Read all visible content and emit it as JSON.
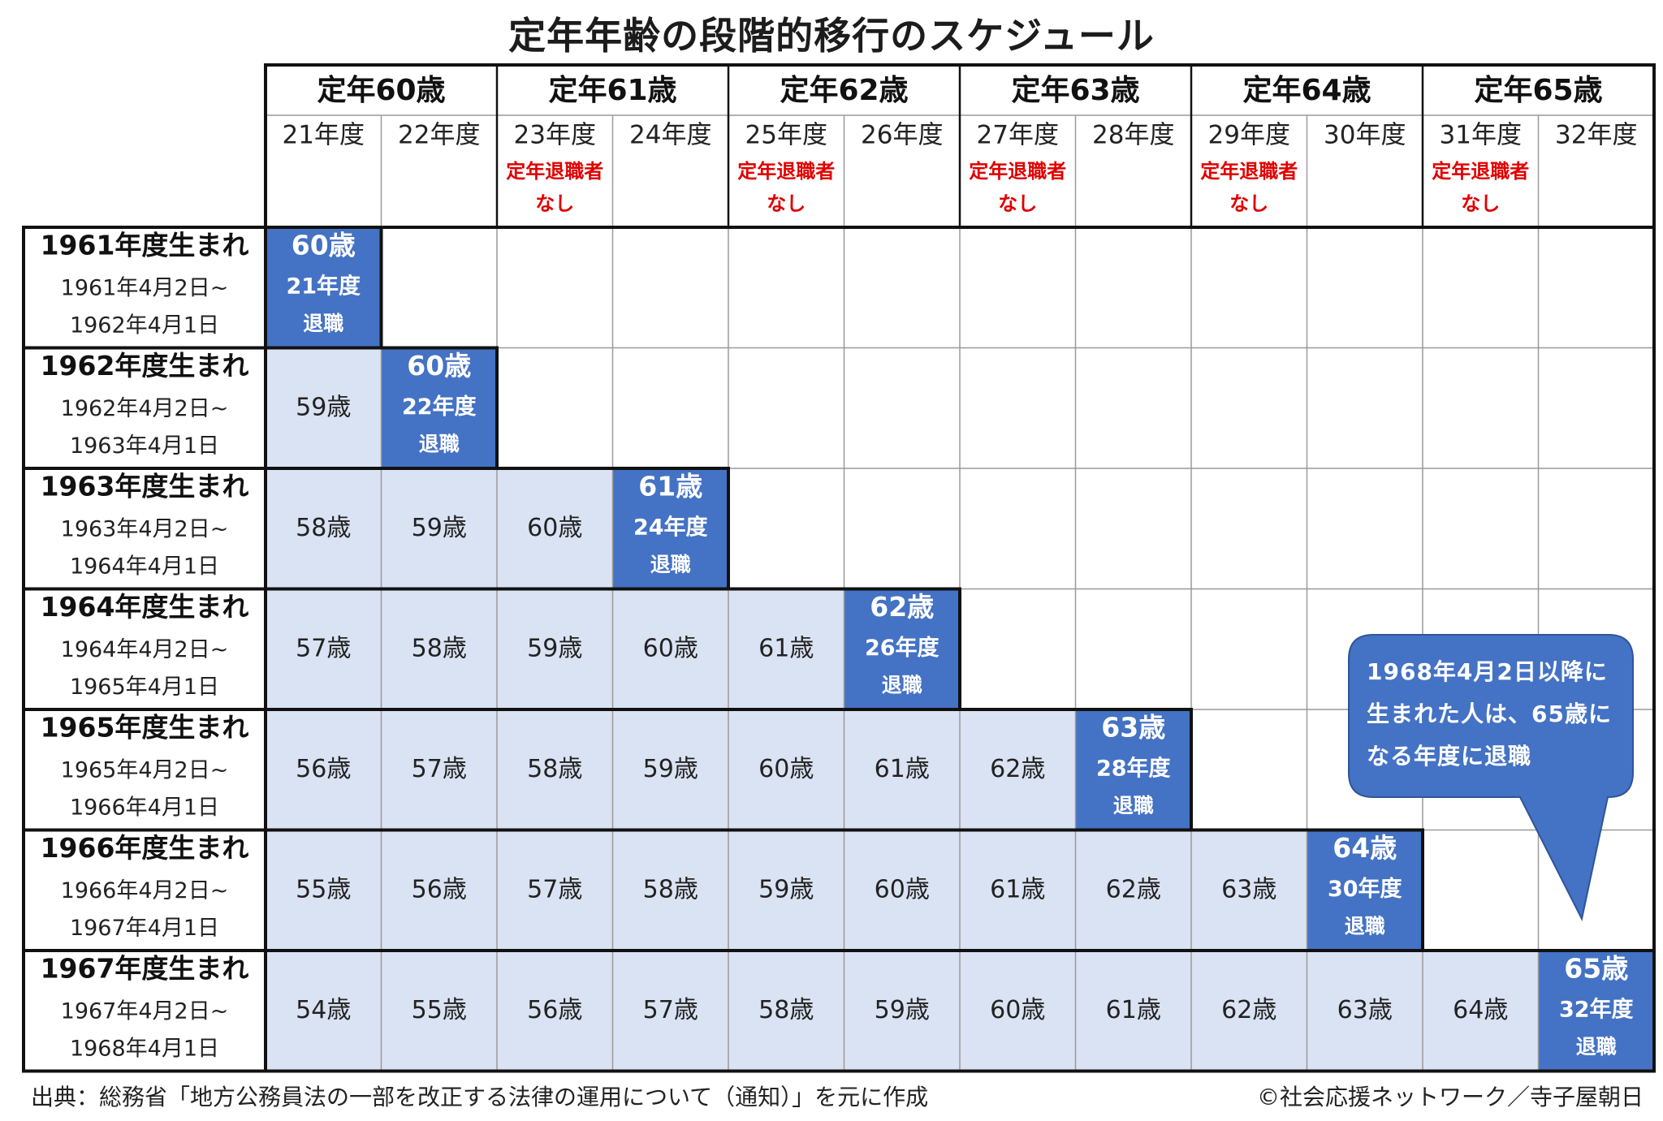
{
  "title": "定年年齢の段階的移行のスケジュール",
  "source": "出典：総務省「地方公務員法の一部を改正する法律の運用について（通知）」を元に作成",
  "credit": "©社会応援ネットワーク／寺子屋朝日",
  "callout": "1968年4月2日以降に生まれた人は、65歳になる年度に退職",
  "colors": {
    "retire_fill": "#4472c4",
    "age_fill": "#dae3f3",
    "red_note": "#e00000",
    "border": "#111111",
    "grid": "#9a9a9a"
  },
  "chart_data": {
    "type": "table",
    "column_groups": [
      {
        "label": "定年60歳",
        "years": [
          "21年度",
          "22年度"
        ]
      },
      {
        "label": "定年61歳",
        "years": [
          "23年度",
          "24年度"
        ]
      },
      {
        "label": "定年62歳",
        "years": [
          "25年度",
          "26年度"
        ]
      },
      {
        "label": "定年63歳",
        "years": [
          "27年度",
          "28年度"
        ]
      },
      {
        "label": "定年64歳",
        "years": [
          "29年度",
          "30年度"
        ]
      },
      {
        "label": "定年65歳",
        "years": [
          "31年度",
          "32年度"
        ]
      }
    ],
    "columns": [
      "21年度",
      "22年度",
      "23年度",
      "24年度",
      "25年度",
      "26年度",
      "27年度",
      "28年度",
      "29年度",
      "30年度",
      "31年度",
      "32年度"
    ],
    "no_retiree_note": [
      "定年退職者",
      "なし"
    ],
    "no_retiree_columns": [
      "23年度",
      "25年度",
      "27年度",
      "29年度",
      "31年度"
    ],
    "rows": [
      {
        "label": "1961年度生まれ",
        "range_start": "1961年4月2日~",
        "range_end": "1962年4月1日",
        "ages": [],
        "retire": {
          "age": "60歳",
          "year": "21年度",
          "word": "退職"
        }
      },
      {
        "label": "1962年度生まれ",
        "range_start": "1962年4月2日~",
        "range_end": "1963年4月1日",
        "ages": [
          "59歳"
        ],
        "retire": {
          "age": "60歳",
          "year": "22年度",
          "word": "退職"
        }
      },
      {
        "label": "1963年度生まれ",
        "range_start": "1963年4月2日~",
        "range_end": "1964年4月1日",
        "ages": [
          "58歳",
          "59歳",
          "60歳"
        ],
        "retire": {
          "age": "61歳",
          "year": "24年度",
          "word": "退職"
        }
      },
      {
        "label": "1964年度生まれ",
        "range_start": "1964年4月2日~",
        "range_end": "1965年4月1日",
        "ages": [
          "57歳",
          "58歳",
          "59歳",
          "60歳",
          "61歳"
        ],
        "retire": {
          "age": "62歳",
          "year": "26年度",
          "word": "退職"
        }
      },
      {
        "label": "1965年度生まれ",
        "range_start": "1965年4月2日~",
        "range_end": "1966年4月1日",
        "ages": [
          "56歳",
          "57歳",
          "58歳",
          "59歳",
          "60歳",
          "61歳",
          "62歳"
        ],
        "retire": {
          "age": "63歳",
          "year": "28年度",
          "word": "退職"
        }
      },
      {
        "label": "1966年度生まれ",
        "range_start": "1966年4月2日~",
        "range_end": "1967年4月1日",
        "ages": [
          "55歳",
          "56歳",
          "57歳",
          "58歳",
          "59歳",
          "60歳",
          "61歳",
          "62歳",
          "63歳"
        ],
        "retire": {
          "age": "64歳",
          "year": "30年度",
          "word": "退職"
        }
      },
      {
        "label": "1967年度生まれ",
        "range_start": "1967年4月2日~",
        "range_end": "1968年4月1日",
        "ages": [
          "54歳",
          "55歳",
          "56歳",
          "57歳",
          "58歳",
          "59歳",
          "60歳",
          "61歳",
          "62歳",
          "63歳",
          "64歳"
        ],
        "retire": {
          "age": "65歳",
          "year": "32年度",
          "word": "退職"
        }
      }
    ]
  }
}
